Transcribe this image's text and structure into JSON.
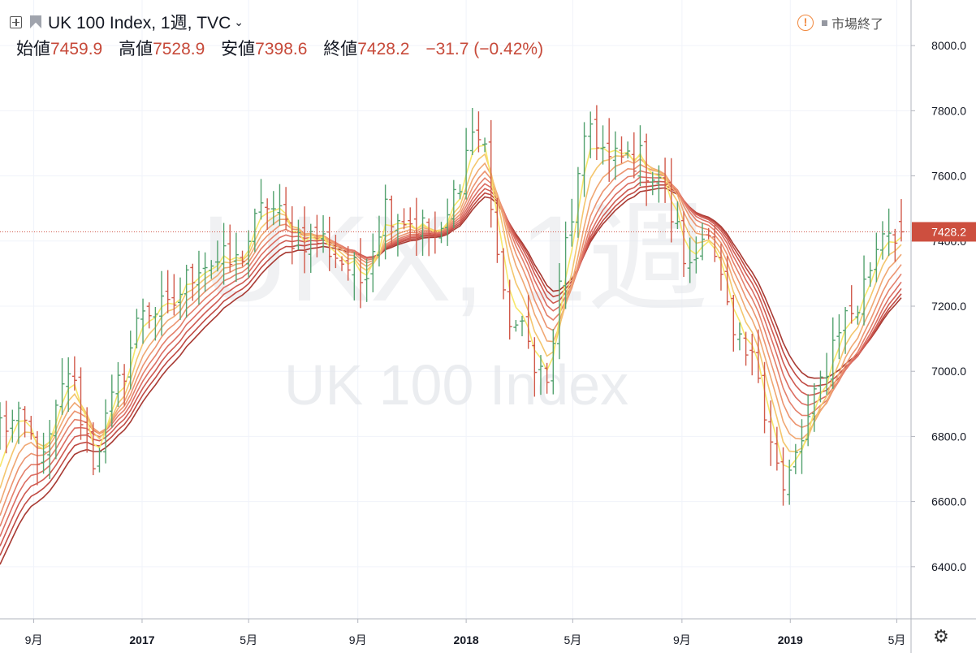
{
  "header": {
    "symbol": "UK 100 Index, 1週, TVC",
    "open_label": "始値",
    "open": "7459.9",
    "high_label": "高値",
    "high": "7528.9",
    "low_label": "安値",
    "low": "7398.6",
    "close_label": "終値",
    "close": "7428.2",
    "change": "−31.7 (−0.42%)",
    "market_status": "市場終了",
    "icons": [
      "add-symbol-icon",
      "flag-icon",
      "chevron-down-icon",
      "warning-icon",
      "gear-icon"
    ]
  },
  "watermark": {
    "line1": "UKX, 1週",
    "line2": "UK 100 Index"
  },
  "colors": {
    "up": "#53a26f",
    "down": "#d1594a",
    "price_line": "#d1594a",
    "price_label_bg": "#cd4f3f",
    "ribbon": [
      "#f7e76a",
      "#f4c66e",
      "#f0a873",
      "#ec9470",
      "#e4806b",
      "#dc6e63",
      "#cf5b52",
      "#c04a43",
      "#a83a33"
    ]
  },
  "chart_data": {
    "type": "ohlc+ribbon",
    "title": "UK 100 Index, 1週, TVC",
    "y_ticks": [
      "6400.0",
      "6600.0",
      "6800.0",
      "7000.0",
      "7200.0",
      "7400.0",
      "7600.0",
      "7800.0",
      "8000.0"
    ],
    "ylim": [
      6240,
      8140
    ],
    "x_ticks": [
      {
        "label": "9月",
        "date": "2016-09-01"
      },
      {
        "label": "2017",
        "date": "2017-01-01"
      },
      {
        "label": "5月",
        "date": "2017-05-01"
      },
      {
        "label": "9月",
        "date": "2017-09-01"
      },
      {
        "label": "2018",
        "date": "2018-01-01"
      },
      {
        "label": "5月",
        "date": "2018-05-01"
      },
      {
        "label": "9月",
        "date": "2018-09-01"
      },
      {
        "label": "2019",
        "date": "2019-01-01"
      },
      {
        "label": "5月",
        "date": "2019-05-01"
      }
    ],
    "xlim": [
      "2016-07-25",
      "2019-05-17"
    ],
    "last_price": 7428.2,
    "last_price_label": "7428.2",
    "price_waypoints": [
      {
        "date": "2016-07-25",
        "close": 6840
      },
      {
        "date": "2016-08-22",
        "close": 6830
      },
      {
        "date": "2016-09-12",
        "close": 6710
      },
      {
        "date": "2016-10-10",
        "close": 7010
      },
      {
        "date": "2016-11-07",
        "close": 6730
      },
      {
        "date": "2016-12-05",
        "close": 6950
      },
      {
        "date": "2017-01-02",
        "close": 7200
      },
      {
        "date": "2017-01-30",
        "close": 7180
      },
      {
        "date": "2017-03-06",
        "close": 7340
      },
      {
        "date": "2017-04-17",
        "close": 7330
      },
      {
        "date": "2017-05-22",
        "close": 7520
      },
      {
        "date": "2017-06-19",
        "close": 7420
      },
      {
        "date": "2017-07-24",
        "close": 7400
      },
      {
        "date": "2017-09-04",
        "close": 7280
      },
      {
        "date": "2017-10-02",
        "close": 7510
      },
      {
        "date": "2017-11-06",
        "close": 7450
      },
      {
        "date": "2017-12-04",
        "close": 7400
      },
      {
        "date": "2018-01-08",
        "close": 7740
      },
      {
        "date": "2018-01-22",
        "close": 7680
      },
      {
        "date": "2018-02-12",
        "close": 7200
      },
      {
        "date": "2018-03-19",
        "close": 7050
      },
      {
        "date": "2018-04-02",
        "close": 6950
      },
      {
        "date": "2018-04-23",
        "close": 7390
      },
      {
        "date": "2018-05-21",
        "close": 7760
      },
      {
        "date": "2018-06-11",
        "close": 7640
      },
      {
        "date": "2018-07-09",
        "close": 7660
      },
      {
        "date": "2018-08-06",
        "close": 7600
      },
      {
        "date": "2018-09-10",
        "close": 7300
      },
      {
        "date": "2018-10-01",
        "close": 7470
      },
      {
        "date": "2018-10-29",
        "close": 7080
      },
      {
        "date": "2018-11-26",
        "close": 7000
      },
      {
        "date": "2018-12-24",
        "close": 6620
      },
      {
        "date": "2019-01-28",
        "close": 6900
      },
      {
        "date": "2019-02-25",
        "close": 7150
      },
      {
        "date": "2019-03-18",
        "close": 7200
      },
      {
        "date": "2019-04-15",
        "close": 7450
      },
      {
        "date": "2019-05-06",
        "close": 7428
      }
    ],
    "ribbon_periods": [
      3,
      5,
      7,
      9,
      11,
      13,
      15,
      17,
      19
    ]
  }
}
